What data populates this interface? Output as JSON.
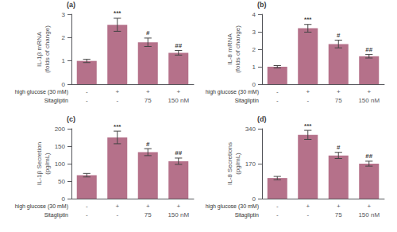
{
  "chart_data": [
    {
      "type": "bar",
      "title": "(a)",
      "ylabel": "IL-1β mRNA\n(folds of change)",
      "categories": [
        "-\n-",
        "+\n-",
        "+\n75",
        "+\n150 nM"
      ],
      "row_labels": [
        "high glucose (30 mM)",
        "Sitagliptin"
      ],
      "values": [
        1.0,
        2.55,
        1.8,
        1.35
      ],
      "errors": [
        0.07,
        0.28,
        0.18,
        0.1
      ],
      "annotations": [
        null,
        "***",
        "#",
        "##"
      ],
      "color": "#b5718a",
      "ylim": [
        0,
        3
      ],
      "yticks": [
        0,
        1,
        2,
        3
      ],
      "grid": false
    },
    {
      "type": "bar",
      "title": "(b)",
      "ylabel": "IL-8 mRNA\n(folds of change)",
      "categories": [
        "-\n-",
        "+\n-",
        "+\n75",
        "+\n150 nM"
      ],
      "row_labels": [
        "high glucose (30 mM)",
        "Sitagliptin"
      ],
      "values": [
        1.0,
        3.2,
        2.3,
        1.6
      ],
      "errors": [
        0.07,
        0.22,
        0.22,
        0.1
      ],
      "annotations": [
        null,
        "***",
        "#",
        "##"
      ],
      "color": "#b5718a",
      "ylim": [
        0,
        4
      ],
      "yticks": [
        0,
        1,
        2,
        3,
        4
      ],
      "grid": false
    },
    {
      "type": "bar",
      "title": "(c)",
      "ylabel": "IL-1β Secretion\n(pg/mL)",
      "categories": [
        "-\n-",
        "+\n-",
        "+\n75",
        "+\n150 nM"
      ],
      "row_labels": [
        "high glucose (30 mM)",
        "Sitagliptin"
      ],
      "values": [
        67,
        175,
        133,
        107
      ],
      "errors": [
        5,
        18,
        10,
        9
      ],
      "annotations": [
        null,
        "***",
        "#",
        "##"
      ],
      "color": "#b5718a",
      "ylim": [
        0,
        200
      ],
      "yticks": [
        0,
        50,
        100,
        150,
        200
      ],
      "grid": false
    },
    {
      "type": "bar",
      "title": "(d)",
      "ylabel": "IL-8 Secretions\n(pg/mL)",
      "categories": [
        "-\n-",
        "+\n-",
        "+\n75",
        "+\n150 nM"
      ],
      "row_labels": [
        "high glucose (30 mM)",
        "Sitagliptin"
      ],
      "values": [
        100,
        310,
        210,
        170
      ],
      "errors": [
        8,
        22,
        15,
        12
      ],
      "annotations": [
        null,
        "***",
        "#",
        "##"
      ],
      "color": "#b5718a",
      "ylim": [
        0,
        340
      ],
      "yticks": [
        0,
        170,
        340
      ],
      "grid": false
    }
  ]
}
